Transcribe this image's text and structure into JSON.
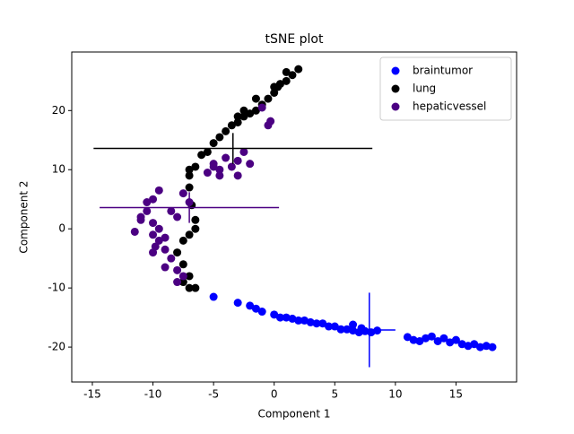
{
  "chart_data": {
    "type": "scatter",
    "title": "tSNE plot",
    "xlabel": "Component 1",
    "ylabel": "Component 2",
    "xlim": [
      -16.7,
      20.0
    ],
    "ylim": [
      -25.9,
      29.9
    ],
    "xticks": [
      -15,
      -10,
      -5,
      0,
      5,
      10,
      15
    ],
    "yticks": [
      -20,
      -10,
      0,
      10,
      20
    ],
    "legend": "upper right",
    "series": [
      {
        "name": "braintumor",
        "color": "#0000ff",
        "x": [
          -5,
          -3,
          -2,
          -1.5,
          -1,
          0,
          0.5,
          1,
          1.5,
          2,
          2.5,
          3,
          3.5,
          4,
          4.5,
          5,
          5.5,
          6,
          6.5,
          7,
          7.5,
          8,
          8.5,
          6.5,
          7.2,
          11,
          11.5,
          12,
          12.5,
          13,
          13.5,
          14,
          14.5,
          15,
          15.5,
          16,
          16.5,
          17,
          17.5,
          18
        ],
        "y": [
          -11.5,
          -12.5,
          -13,
          -13.5,
          -14,
          -14.5,
          -15,
          -15,
          -15.2,
          -15.5,
          -15.5,
          -15.8,
          -16,
          -16,
          -16.5,
          -16.5,
          -17,
          -17,
          -17.2,
          -17.5,
          -17.3,
          -17.5,
          -17.2,
          -16.2,
          -16.8,
          -18.3,
          -18.8,
          -19,
          -18.5,
          -18.2,
          -19,
          -18.5,
          -19.2,
          -18.8,
          -19.5,
          -19.8,
          -19.5,
          -20,
          -19.8,
          -20
        ],
        "mean": {
          "x": 7.85,
          "y": -17.1,
          "xerr": 2.15,
          "yerr": 6.3
        }
      },
      {
        "name": "lung",
        "color": "#000000",
        "x": [
          -7.5,
          -7,
          -6.5,
          -7,
          -7.5,
          -8,
          -7.5,
          -7,
          -6.5,
          -6.5,
          -6.8,
          -7,
          -7,
          -7,
          -6.5,
          -5.5,
          -5,
          -4.5,
          -4,
          -3.5,
          -3,
          -2.5,
          -2,
          -1.5,
          -1,
          -0.5,
          0,
          0.3,
          0.5,
          1,
          1.5,
          2,
          1,
          0,
          -1.5,
          -2.5,
          -3,
          -6
        ],
        "y": [
          -9,
          -10,
          -10,
          -8,
          -6,
          -4,
          -2,
          -1,
          0,
          1.5,
          4,
          7,
          9,
          10,
          10.5,
          13,
          14.5,
          15.5,
          16.5,
          17.5,
          18,
          19,
          19.5,
          20,
          21,
          22,
          23,
          24,
          24.5,
          25,
          26,
          27,
          26.5,
          24,
          22,
          20,
          19,
          12.5
        ],
        "mean": {
          "x": -3.4,
          "y": 13.6,
          "xerr": 11.5,
          "yerr": 2.6
        }
      },
      {
        "name": "hepaticvessel",
        "color": "#4b0082",
        "x": [
          -10.5,
          -11,
          -10,
          -9.5,
          -10,
          -11.5,
          -9,
          -10.5,
          -10,
          -9.5,
          -9.8,
          -9,
          -8.5,
          -9,
          -8,
          -7.5,
          -8,
          -8.5,
          -8,
          -7.5,
          -7,
          -5,
          -4.5,
          -4,
          -3.5,
          -3,
          -3,
          -2,
          -2.5,
          -5.5,
          -4.5,
          -0.5,
          -0.3,
          -1,
          -5,
          -10,
          -9.5,
          -11
        ],
        "y": [
          3,
          2,
          1,
          0,
          -1,
          -0.5,
          -1.5,
          4.5,
          5,
          6.5,
          -3,
          -3.5,
          -5,
          -6.5,
          -7,
          -8,
          -9,
          3,
          2,
          6,
          4.5,
          11,
          10,
          12,
          10.5,
          9,
          11.5,
          11,
          13,
          9.5,
          9,
          17.5,
          18.2,
          20.5,
          10.5,
          -4,
          -2,
          1.5
        ],
        "mean": {
          "x": -7.0,
          "y": 3.6,
          "xerr": 7.4,
          "yerr": 2.6
        }
      }
    ]
  }
}
